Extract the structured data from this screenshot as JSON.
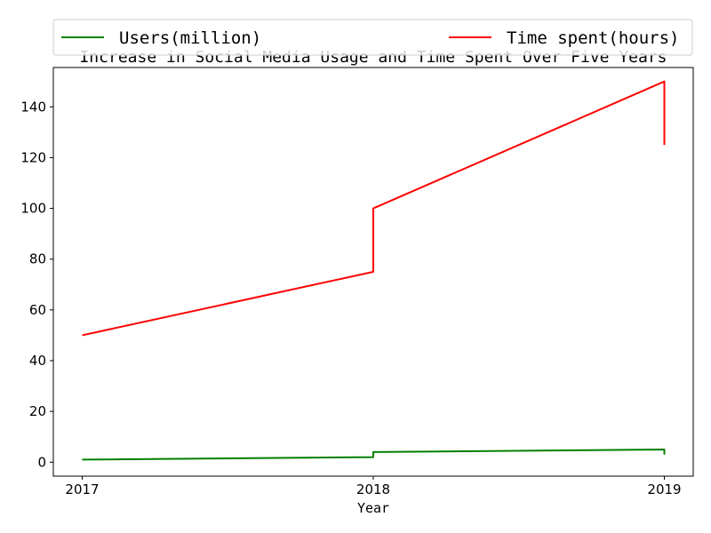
{
  "chart_data": {
    "type": "line",
    "title": "Increase in Social Media Usage and Time Spent Over Five Years",
    "xlabel": "Year",
    "ylabel": "",
    "x": [
      "2017",
      "2018",
      "2018",
      "2019",
      "2019"
    ],
    "categories": [
      "2017",
      "2018",
      "2019"
    ],
    "ylim": [
      -5.5,
      155.5
    ],
    "yticks": [
      0,
      20,
      40,
      60,
      80,
      100,
      120,
      140
    ],
    "grid": false,
    "legend_position": "top",
    "series": [
      {
        "name": "Users(million)",
        "color": "#008000",
        "values": [
          1,
          2,
          4,
          5,
          3
        ]
      },
      {
        "name": "Time spent(hours)",
        "color": "#ff0000",
        "values": [
          50,
          75,
          100,
          150,
          125
        ]
      }
    ]
  }
}
